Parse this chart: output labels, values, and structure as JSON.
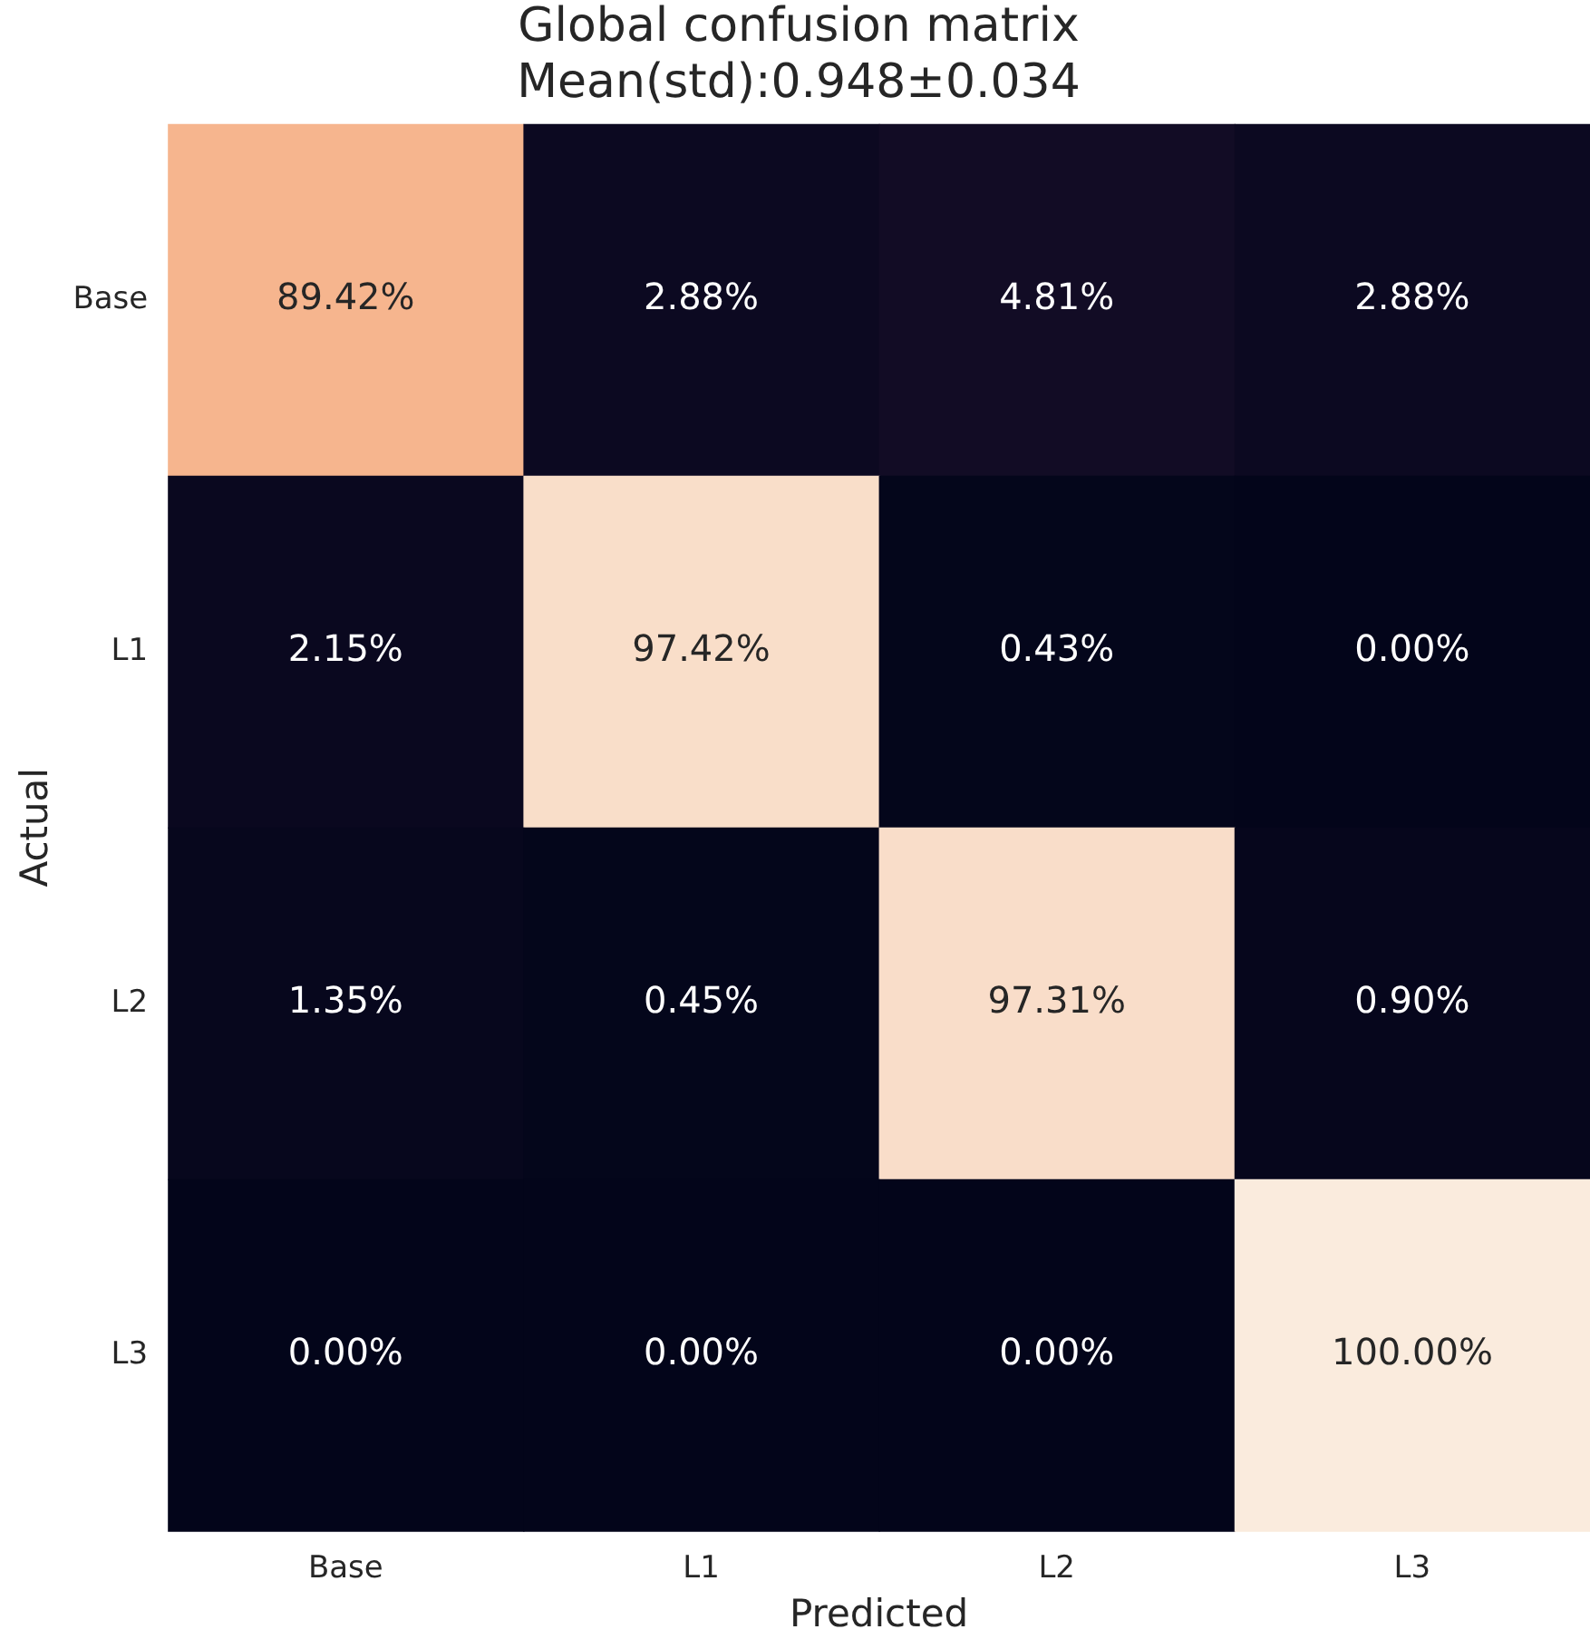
{
  "chart_data": {
    "type": "heatmap",
    "title": "Global confusion matrix",
    "subtitle": "Mean(std):0.948±0.034",
    "xlabel": "Predicted",
    "ylabel": "Actual",
    "categories": [
      "Base",
      "L1",
      "L2",
      "L3"
    ],
    "y_categories": [
      "Base",
      "L1",
      "L2",
      "L3"
    ],
    "cells": [
      [
        89.42,
        2.88,
        4.81,
        2.88
      ],
      [
        2.15,
        97.42,
        0.43,
        0.0
      ],
      [
        1.35,
        0.45,
        97.31,
        0.9
      ],
      [
        0.0,
        0.0,
        0.0,
        100.0
      ]
    ],
    "cell_labels": [
      [
        "89.42%",
        "2.88%",
        "4.81%",
        "2.88%"
      ],
      [
        "2.15%",
        "97.42%",
        "0.43%",
        "0.00%"
      ],
      [
        "1.35%",
        "0.45%",
        "97.31%",
        "0.90%"
      ],
      [
        "0.00%",
        "0.00%",
        "0.00%",
        "100.00%"
      ]
    ]
  }
}
